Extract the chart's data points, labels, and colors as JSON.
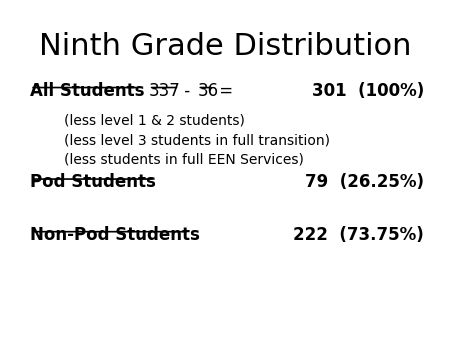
{
  "title": "Ninth Grade Distribution",
  "title_fontsize": 22,
  "background_color": "#ffffff",
  "text_color": "#000000",
  "line1_bold_underline": "All Students",
  "line1_right": "301  (100%)",
  "sub1": "(less level 1 & 2 students)",
  "sub2": "(less level 3 students in full transition)",
  "sub3": "(less students in full EEN Services)",
  "line2_bold_underline": "Pod Students",
  "line2_right": "79  (26.25%)",
  "line3_bold_underline": "Non-Pod Students",
  "line3_right": "222  (73.75%)"
}
